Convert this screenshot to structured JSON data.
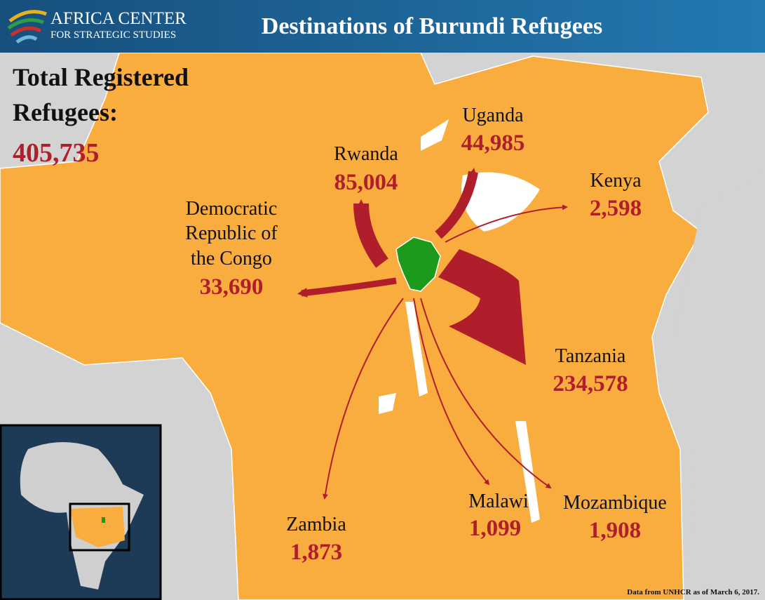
{
  "header": {
    "logo_line1": "AFRICA CENTER",
    "logo_line2": "FOR STRATEGIC STUDIES",
    "title": "Destinations of Burundi Refugees"
  },
  "total": {
    "label_lines": [
      "Total Registered",
      "Refugees:"
    ],
    "value": "405,735"
  },
  "destinations": [
    {
      "name_lines": [
        "Rwanda"
      ],
      "value": "85,004"
    },
    {
      "name_lines": [
        "Uganda"
      ],
      "value": "44,985"
    },
    {
      "name_lines": [
        "Kenya"
      ],
      "value": "2,598"
    },
    {
      "name_lines": [
        "Democratic",
        "Republic of",
        "the Congo"
      ],
      "value": "33,690"
    },
    {
      "name_lines": [
        "Tanzania"
      ],
      "value": "234,578"
    },
    {
      "name_lines": [
        "Zambia"
      ],
      "value": "1,873"
    },
    {
      "name_lines": [
        "Malawi"
      ],
      "value": "1,099"
    },
    {
      "name_lines": [
        "Mozambique"
      ],
      "value": "1,908"
    }
  ],
  "source": "Data from UNHCR as of March 6, 2017."
}
